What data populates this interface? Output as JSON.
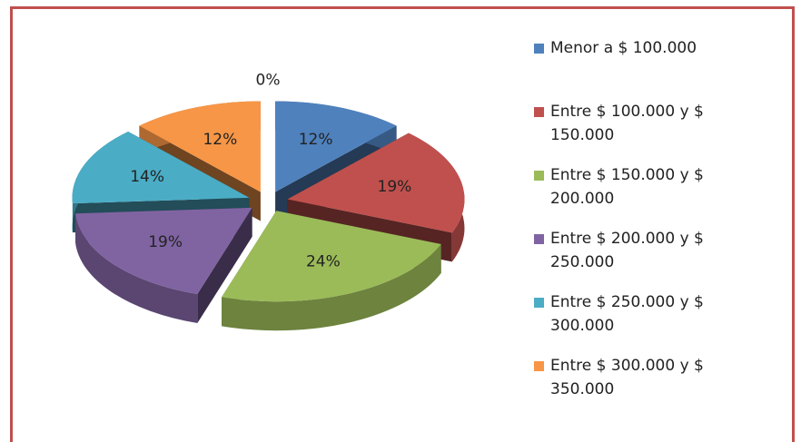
{
  "chart_data": {
    "type": "pie",
    "categories": [
      "Menor a $ 100.000",
      "Entre $ 100.000 y $ 150.000",
      "Entre $ 150.000 y $ 200.000",
      "Entre $ 200.000 y $ 250.000",
      "Entre $ 250.000 y $ 300.000",
      "Entre $ 300.000 y $ 350.000",
      null
    ],
    "values": [
      12,
      19,
      24,
      19,
      14,
      12,
      0
    ],
    "value_labels": [
      "12%",
      "19%",
      "24%",
      "19%",
      "14%",
      "12%",
      "0%"
    ],
    "colors": [
      "#4f81bd",
      "#c0504d",
      "#9bbb59",
      "#8064a2",
      "#4bacc6",
      "#f79646",
      "#2c4d75"
    ],
    "legend": "right"
  }
}
